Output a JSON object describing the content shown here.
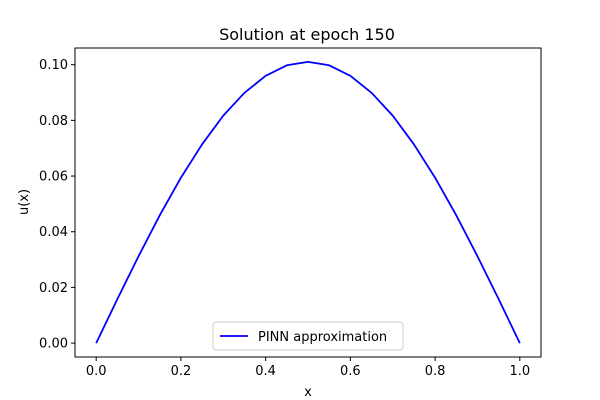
{
  "chart_data": {
    "type": "line",
    "title": "Solution at epoch 150",
    "xlabel": "x",
    "ylabel": "u(x)",
    "xlim": [
      -0.05,
      1.05
    ],
    "ylim": [
      -0.005,
      0.106
    ],
    "xticks": [
      0.0,
      0.2,
      0.4,
      0.6,
      0.8,
      1.0
    ],
    "xtick_labels": [
      "0.0",
      "0.2",
      "0.4",
      "0.6",
      "0.8",
      "1.0"
    ],
    "yticks": [
      0.0,
      0.02,
      0.04,
      0.06,
      0.08,
      0.1
    ],
    "ytick_labels": [
      "0.00",
      "0.02",
      "0.04",
      "0.06",
      "0.08",
      "0.10"
    ],
    "grid": false,
    "legend": {
      "position": "lower-center"
    },
    "series": [
      {
        "name": "PINN approximation",
        "color": "#0000ff",
        "x": [
          0.0,
          0.05,
          0.1,
          0.15,
          0.2,
          0.25,
          0.3,
          0.35,
          0.4,
          0.45,
          0.5,
          0.55,
          0.6,
          0.65,
          0.7,
          0.75,
          0.8,
          0.85,
          0.9,
          0.95,
          1.0
        ],
        "y": [
          0.0,
          0.0158,
          0.0312,
          0.0459,
          0.0594,
          0.0714,
          0.0817,
          0.0899,
          0.096,
          0.0998,
          0.101,
          0.0998,
          0.096,
          0.0899,
          0.0817,
          0.0714,
          0.0594,
          0.0459,
          0.0312,
          0.0158,
          0.0
        ]
      }
    ]
  }
}
